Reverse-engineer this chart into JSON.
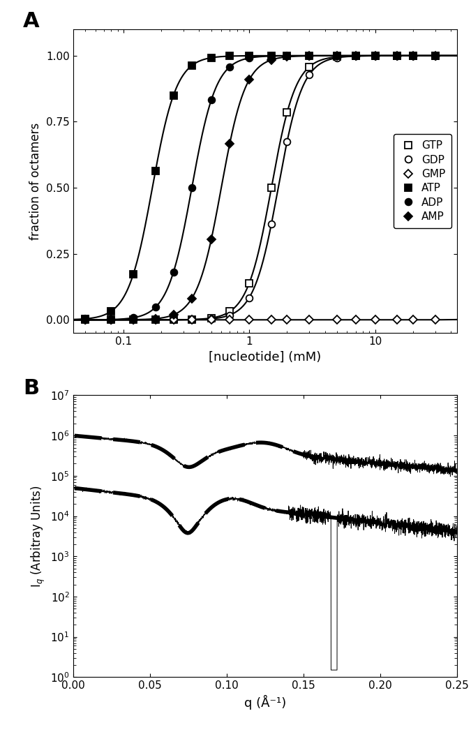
{
  "panel_A": {
    "title": "A",
    "xlabel": "[nucleotide] (mM)",
    "ylabel": "fraction of octamers",
    "xlim_log": [
      -1.4,
      1.6
    ],
    "ylim": [
      -0.05,
      1.1
    ],
    "yticks": [
      0.0,
      0.25,
      0.5,
      0.75,
      1.0
    ],
    "curves": [
      {
        "label": "GTP",
        "K": 1.5,
        "n": 4.5,
        "marker": "s",
        "filled": false,
        "ms": 7
      },
      {
        "label": "GDP",
        "K": 1.7,
        "n": 4.5,
        "marker": "o",
        "filled": false,
        "ms": 7
      },
      {
        "label": "GMP",
        "K": 200.0,
        "n": 4.5,
        "marker": "D",
        "filled": false,
        "ms": 6
      },
      {
        "label": "ATP",
        "K": 0.17,
        "n": 4.5,
        "marker": "s",
        "filled": true,
        "ms": 7
      },
      {
        "label": "ADP",
        "K": 0.35,
        "n": 4.5,
        "marker": "o",
        "filled": true,
        "ms": 7
      },
      {
        "label": "AMP",
        "K": 0.6,
        "n": 4.5,
        "marker": "D",
        "filled": true,
        "ms": 6
      }
    ],
    "marker_x": [
      0.05,
      0.08,
      0.12,
      0.18,
      0.25,
      0.35,
      0.5,
      0.7,
      1.0,
      1.5,
      2.0,
      3.0,
      5.0,
      7.0,
      10.0,
      15.0,
      20.0,
      30.0
    ]
  },
  "panel_B": {
    "title": "B",
    "xlabel": "q (Å⁻¹)",
    "ylabel": "I$_q$ (Arbitray Units)",
    "xlim": [
      0.0,
      0.25
    ],
    "ylim_log": [
      1.0,
      10000000.0
    ]
  }
}
